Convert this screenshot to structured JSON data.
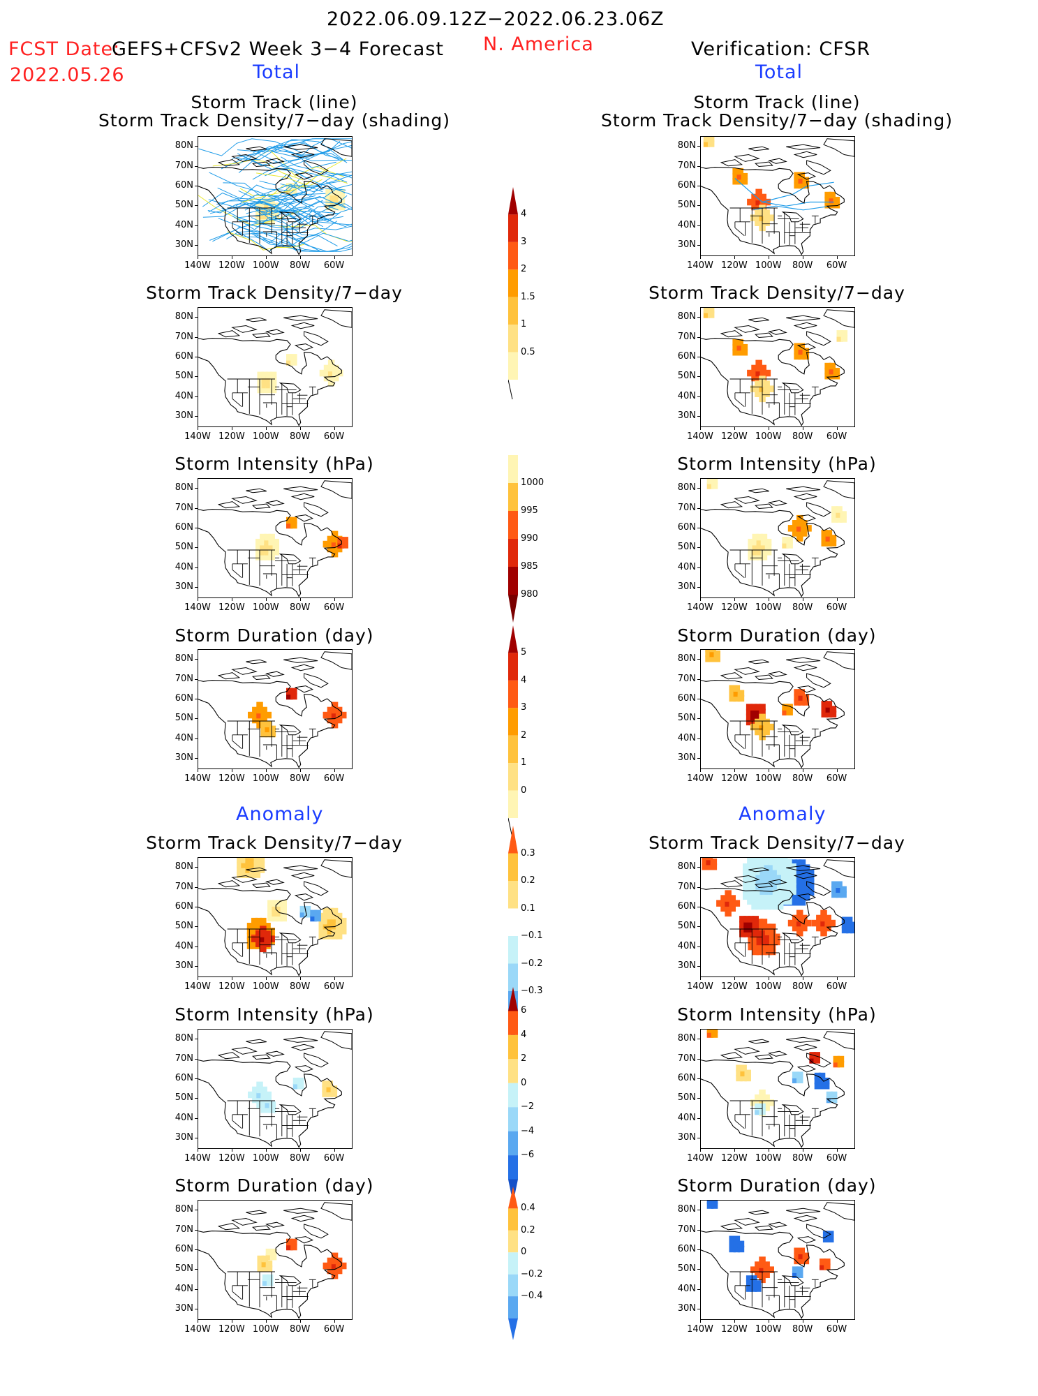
{
  "header": {
    "date_range": "2022.06.09.12Z−2022.06.23.06Z",
    "fcst_date_label": "FCST Date:",
    "model": "GEFS+CFSv2 Week 3−4 Forecast",
    "fcst_date": "2022.05.26",
    "region": "N. America",
    "verification": "Verification: CFSR"
  },
  "sections": {
    "total_left": "Total",
    "total_right": "Total",
    "anomaly_left": "Anomaly",
    "anomaly_right": "Anomaly"
  },
  "titles": {
    "storm_track_line": "Storm Track (line)",
    "storm_track_shading": "Storm Track Density/7−day (shading)",
    "density": "Storm Track Density/7−day",
    "intensity": "Storm Intensity (hPa)",
    "duration": "Storm Duration (day)"
  },
  "axes": {
    "lat_labels": [
      "80N",
      "70N",
      "60N",
      "50N",
      "40N",
      "30N"
    ],
    "lon_labels": [
      "140W",
      "120W",
      "100W",
      "80W",
      "60W"
    ]
  },
  "colorbars": {
    "density_total": [
      "4",
      "3",
      "2",
      "1.5",
      "1",
      "0.5"
    ],
    "intensity_total": [
      "1000",
      "995",
      "990",
      "985",
      "980"
    ],
    "duration_total": [
      "5",
      "4",
      "3",
      "2",
      "1",
      "0"
    ],
    "density_anom": [
      "0.3",
      "0.2",
      "0.1",
      "−0.1",
      "−0.2",
      "−0.3"
    ],
    "intensity_anom": [
      "6",
      "4",
      "2",
      "0",
      "−2",
      "−4",
      "−6"
    ],
    "duration_anom": [
      "0.4",
      "0.2",
      "0",
      "−0.2",
      "−0.4"
    ]
  },
  "colors": {
    "warm": [
      "#fff5b4",
      "#ffe184",
      "#ffc23c",
      "#ff9c00",
      "#ff5a14",
      "#e0280a",
      "#a00000"
    ],
    "cool": [
      "#c6f2f8",
      "#9ad8f8",
      "#5aa8f0",
      "#2470e6"
    ],
    "track": "#1e9be8",
    "track_highlight": "#e8e832",
    "title_red": "#ff2020",
    "section_blue": "#1a3cff"
  },
  "chart_data": [
    {
      "type": "heatmap",
      "panel": "forecast-total-storm-track",
      "title": "Storm Track (line) / Storm Track Density/7−day (shading)",
      "xlim": [
        -140,
        -50
      ],
      "ylim": [
        25,
        85
      ]
    },
    {
      "type": "heatmap",
      "panel": "verification-total-storm-track",
      "title": "Storm Track (line) / Storm Track Density/7−day (shading)",
      "xlim": [
        -140,
        -50
      ],
      "ylim": [
        25,
        85
      ]
    },
    {
      "type": "heatmap",
      "panel": "forecast-total-density",
      "title": "Storm Track Density/7−day",
      "levels": [
        0.5,
        1,
        1.5,
        2,
        3,
        4
      ]
    },
    {
      "type": "heatmap",
      "panel": "verification-total-density",
      "title": "Storm Track Density/7−day",
      "levels": [
        0.5,
        1,
        1.5,
        2,
        3,
        4
      ]
    },
    {
      "type": "heatmap",
      "panel": "forecast-total-intensity",
      "title": "Storm Intensity (hPa)",
      "levels": [
        980,
        985,
        990,
        995,
        1000
      ]
    },
    {
      "type": "heatmap",
      "panel": "verification-total-intensity",
      "title": "Storm Intensity (hPa)",
      "levels": [
        980,
        985,
        990,
        995,
        1000
      ]
    },
    {
      "type": "heatmap",
      "panel": "forecast-total-duration",
      "title": "Storm Duration (day)",
      "levels": [
        0,
        1,
        2,
        3,
        4,
        5
      ]
    },
    {
      "type": "heatmap",
      "panel": "verification-total-duration",
      "title": "Storm Duration (day)",
      "levels": [
        0,
        1,
        2,
        3,
        4,
        5
      ]
    },
    {
      "type": "heatmap",
      "panel": "forecast-anomaly-density",
      "title": "Storm Track Density/7−day",
      "levels": [
        -0.3,
        -0.2,
        -0.1,
        0.1,
        0.2,
        0.3
      ]
    },
    {
      "type": "heatmap",
      "panel": "verification-anomaly-density",
      "title": "Storm Track Density/7−day",
      "levels": [
        -0.3,
        -0.2,
        -0.1,
        0.1,
        0.2,
        0.3
      ]
    },
    {
      "type": "heatmap",
      "panel": "forecast-anomaly-intensity",
      "title": "Storm Intensity (hPa)",
      "levels": [
        -6,
        -4,
        -2,
        0,
        2,
        4,
        6
      ]
    },
    {
      "type": "heatmap",
      "panel": "verification-anomaly-intensity",
      "title": "Storm Intensity (hPa)",
      "levels": [
        -6,
        -4,
        -2,
        0,
        2,
        4,
        6
      ]
    },
    {
      "type": "heatmap",
      "panel": "forecast-anomaly-duration",
      "title": "Storm Duration (day)",
      "levels": [
        -0.4,
        -0.2,
        0,
        0.2,
        0.4
      ]
    },
    {
      "type": "heatmap",
      "panel": "verification-anomaly-duration",
      "title": "Storm Duration (day)",
      "levels": [
        -0.4,
        -0.2,
        0,
        0.2,
        0.4
      ]
    }
  ]
}
